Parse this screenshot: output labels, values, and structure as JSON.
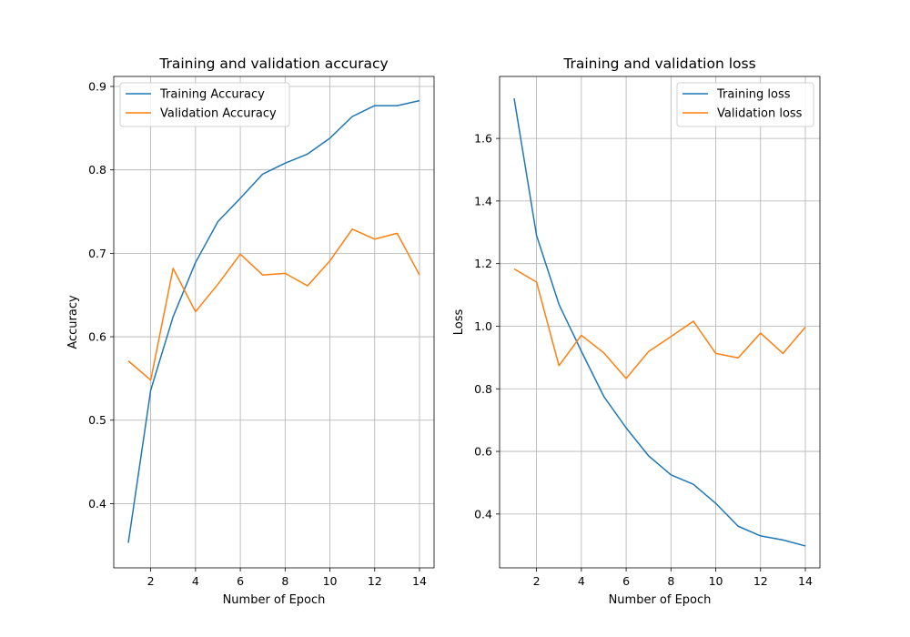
{
  "chart_data": [
    {
      "type": "line",
      "title": "Training and validation accuracy",
      "xlabel": "Number of Epoch",
      "ylabel": "Accuracy",
      "x": [
        1,
        2,
        3,
        4,
        5,
        6,
        7,
        8,
        9,
        10,
        11,
        12,
        13,
        14
      ],
      "xlim": [
        0.35,
        14.65
      ],
      "ylim": [
        0.323,
        0.912
      ],
      "xticks": [
        2,
        4,
        6,
        8,
        10,
        12,
        14
      ],
      "yticks": [
        0.4,
        0.5,
        0.6,
        0.7,
        0.8,
        0.9
      ],
      "xtick_labels": [
        "2",
        "4",
        "6",
        "8",
        "10",
        "12",
        "14"
      ],
      "ytick_labels": [
        "0.4",
        "0.5",
        "0.6",
        "0.7",
        "0.8",
        "0.9"
      ],
      "grid": true,
      "legend": "upper-left",
      "series": [
        {
          "name": "Training Accuracy",
          "color": "#1f77b4",
          "values": [
            0.353,
            0.536,
            0.624,
            0.689,
            0.738,
            0.766,
            0.795,
            0.808,
            0.819,
            0.838,
            0.864,
            0.877,
            0.877,
            0.883
          ]
        },
        {
          "name": "Validation Accuracy",
          "color": "#ff7f0e",
          "values": [
            0.571,
            0.548,
            0.682,
            0.63,
            0.663,
            0.699,
            0.674,
            0.676,
            0.661,
            0.691,
            0.729,
            0.717,
            0.724,
            0.674
          ]
        }
      ]
    },
    {
      "type": "line",
      "title": "Training and validation loss",
      "xlabel": "Number of Epoch",
      "ylabel": "Loss",
      "x": [
        1,
        2,
        3,
        4,
        5,
        6,
        7,
        8,
        9,
        10,
        11,
        12,
        13,
        14
      ],
      "xlim": [
        0.35,
        14.65
      ],
      "ylim": [
        0.228,
        1.798
      ],
      "xticks": [
        2,
        4,
        6,
        8,
        10,
        12,
        14
      ],
      "yticks": [
        0.4,
        0.6,
        0.8,
        1.0,
        1.2,
        1.4,
        1.6
      ],
      "xtick_labels": [
        "2",
        "4",
        "6",
        "8",
        "10",
        "12",
        "14"
      ],
      "ytick_labels": [
        "0.4",
        "0.6",
        "0.8",
        "1.0",
        "1.2",
        "1.4",
        "1.6"
      ],
      "grid": true,
      "legend": "upper-right",
      "series": [
        {
          "name": "Training loss",
          "color": "#1f77b4",
          "values": [
            1.728,
            1.29,
            1.07,
            0.92,
            0.776,
            0.675,
            0.586,
            0.525,
            0.495,
            0.434,
            0.361,
            0.33,
            0.317,
            0.298
          ]
        },
        {
          "name": "Validation loss",
          "color": "#ff7f0e",
          "values": [
            1.183,
            1.141,
            0.874,
            0.971,
            0.915,
            0.833,
            0.919,
            0.967,
            1.016,
            0.913,
            0.899,
            0.978,
            0.913,
            0.997
          ]
        }
      ]
    }
  ]
}
